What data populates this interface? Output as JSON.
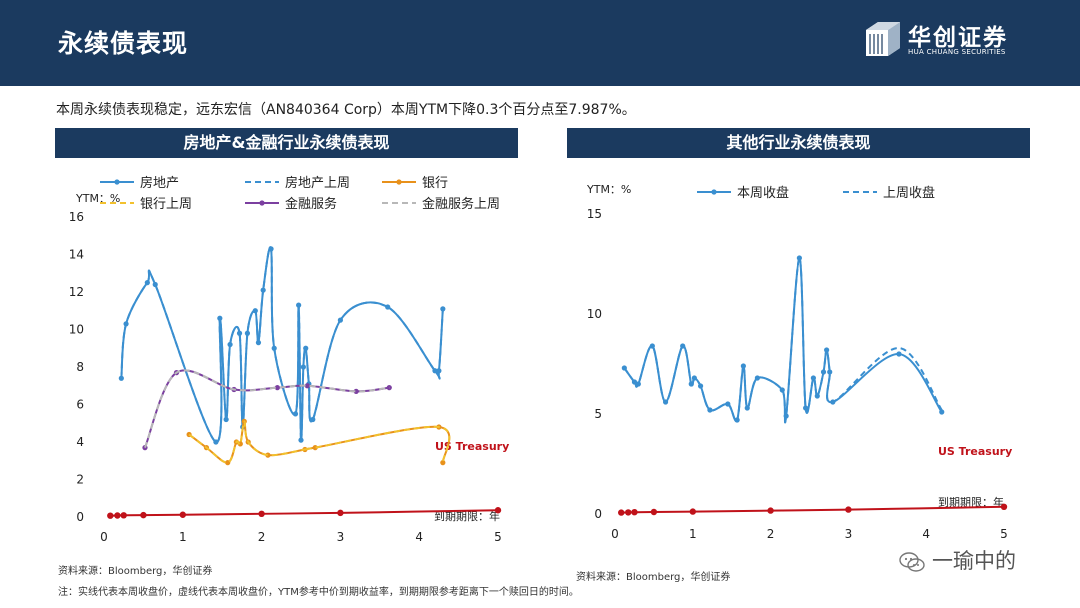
{
  "header": {
    "title": "永续债表现"
  },
  "logo": {
    "cn": "华创证券",
    "en": "HUA CHUANG SECURITIES"
  },
  "summary": "本周永续债表现稳定，远东宏信（AN840364 Corp）本周YTM下降0.3个百分点至7.987%。",
  "footer": {
    "source_left": "资料来源：Bloomberg，华创证券",
    "source_right": "资料来源：Bloomberg，华创证券",
    "note": "注：实线代表本周收盘价，虚线代表本周收盘价，YTM参考中价到期收益率，到期期限参考距离下一个赎回日的时间。"
  },
  "watermark": "一瑜中的",
  "colors": {
    "navy": "#1b3a5f",
    "blue": "#3a8fd0",
    "orange": "#e8911b",
    "purple": "#7b3fa0",
    "red": "#c0121a",
    "gray": "#9a9a9a"
  },
  "chart_data": [
    {
      "type": "line",
      "title": "房地产&金融行业永续债表现",
      "ylabel": "YTM：%",
      "xlabel": "到期期限：年",
      "xlim": [
        0,
        5
      ],
      "ylim": [
        0,
        16
      ],
      "xticks": [
        0,
        1,
        2,
        3,
        4,
        5
      ],
      "yticks": [
        0,
        2,
        4,
        6,
        8,
        10,
        12,
        14,
        16
      ],
      "annotation": "US Treasury",
      "legend_position": "top",
      "series": [
        {
          "name": "房地产",
          "style": "solid",
          "color": "#3a8fd0",
          "x": [
            0.22,
            0.28,
            0.55,
            0.65,
            1.42,
            1.47,
            1.55,
            1.6,
            1.72,
            1.76,
            1.82,
            1.92,
            1.96,
            2.02,
            2.12,
            2.16,
            2.43,
            2.47,
            2.5,
            2.53,
            2.56,
            2.6,
            2.65,
            3.0,
            3.6,
            4.2,
            4.25,
            4.3
          ],
          "y": [
            7.4,
            10.3,
            12.5,
            12.4,
            4.0,
            10.6,
            5.2,
            9.2,
            9.8,
            4.8,
            9.8,
            11.0,
            9.3,
            12.1,
            14.3,
            9.0,
            5.5,
            11.3,
            4.1,
            8.0,
            9.0,
            7.1,
            5.2,
            10.5,
            11.2,
            7.8,
            7.8,
            11.1
          ]
        },
        {
          "name": "房地产上周",
          "style": "dashed",
          "color": "#3a8fd0",
          "x": [
            0.22,
            0.28,
            0.55,
            0.65,
            1.42,
            1.47,
            1.55,
            1.6,
            1.72,
            1.76,
            1.82,
            1.92,
            1.96,
            2.02,
            2.12,
            2.16,
            2.43,
            2.47,
            2.5,
            2.53,
            2.56,
            2.6,
            2.65,
            3.0,
            3.6,
            4.2,
            4.25,
            4.3
          ],
          "y": [
            7.4,
            10.3,
            12.5,
            12.4,
            4.0,
            10.6,
            5.2,
            9.2,
            9.8,
            4.8,
            9.8,
            11.0,
            9.3,
            12.1,
            14.3,
            9.0,
            5.5,
            11.3,
            4.1,
            8.0,
            9.0,
            7.1,
            5.2,
            10.5,
            11.2,
            7.8,
            7.8,
            11.1
          ]
        },
        {
          "name": "银行",
          "style": "solid",
          "color": "#e8911b",
          "x": [
            1.08,
            1.3,
            1.57,
            1.68,
            1.73,
            1.78,
            1.83,
            2.08,
            2.55,
            2.68,
            4.25,
            4.3
          ],
          "y": [
            4.4,
            3.7,
            2.9,
            4.0,
            3.9,
            5.1,
            4.0,
            3.3,
            3.6,
            3.7,
            4.8,
            2.9
          ]
        },
        {
          "name": "银行上周",
          "style": "dashed",
          "color": "#f2c12e",
          "x": [
            1.08,
            1.3,
            1.57,
            1.68,
            1.73,
            1.78,
            1.83,
            2.08,
            2.55,
            2.68,
            4.25,
            4.3
          ],
          "y": [
            4.4,
            3.7,
            2.9,
            4.0,
            3.9,
            5.1,
            4.0,
            3.3,
            3.6,
            3.7,
            4.8,
            2.9
          ]
        },
        {
          "name": "金融服务",
          "style": "solid",
          "color": "#7b3fa0",
          "x": [
            0.52,
            0.92,
            1.65,
            2.2,
            2.58,
            3.2,
            3.62
          ],
          "y": [
            3.7,
            7.7,
            6.8,
            6.9,
            7.0,
            6.7,
            6.9
          ]
        },
        {
          "name": "金融服务上周",
          "style": "dashed",
          "color": "#b8b8b8",
          "x": [
            0.52,
            0.92,
            1.65,
            2.2,
            2.58,
            3.2,
            3.62
          ],
          "y": [
            3.7,
            7.7,
            6.8,
            6.9,
            7.0,
            6.7,
            6.9
          ]
        },
        {
          "name": "US Treasury",
          "style": "solid",
          "color": "#c0121a",
          "legend": false,
          "x": [
            0.08,
            0.17,
            0.25,
            0.5,
            1.0,
            2.0,
            3.0,
            5.0
          ],
          "y": [
            0.07,
            0.08,
            0.09,
            0.1,
            0.12,
            0.17,
            0.22,
            0.36
          ]
        }
      ]
    },
    {
      "type": "line",
      "title": "其他行业永续债表现",
      "ylabel": "YTM：%",
      "xlabel": "到期期限：年",
      "xlim": [
        0,
        5
      ],
      "ylim": [
        0,
        15
      ],
      "xticks": [
        0,
        1,
        2,
        3,
        4,
        5
      ],
      "yticks": [
        0,
        5,
        10,
        15
      ],
      "annotation": "US Treasury",
      "legend_position": "top",
      "series": [
        {
          "name": "本周收盘",
          "style": "solid",
          "color": "#3a8fd0",
          "x": [
            0.12,
            0.25,
            0.3,
            0.48,
            0.65,
            0.87,
            0.98,
            1.02,
            1.1,
            1.22,
            1.45,
            1.57,
            1.65,
            1.7,
            1.83,
            2.15,
            2.2,
            2.37,
            2.45,
            2.55,
            2.6,
            2.68,
            2.72,
            2.76,
            2.8,
            3.65,
            4.2
          ],
          "y": [
            7.3,
            6.6,
            6.5,
            8.4,
            5.6,
            8.4,
            6.5,
            6.8,
            6.4,
            5.2,
            5.5,
            4.7,
            7.4,
            5.3,
            6.8,
            6.2,
            4.9,
            12.8,
            5.3,
            6.8,
            5.9,
            7.1,
            8.2,
            7.1,
            5.6,
            8.0,
            5.1
          ]
        },
        {
          "name": "上周收盘",
          "style": "dashed",
          "color": "#3a8fd0",
          "x": [
            0.12,
            0.25,
            0.3,
            0.48,
            0.65,
            0.87,
            0.98,
            1.02,
            1.1,
            1.22,
            1.45,
            1.57,
            1.65,
            1.7,
            1.83,
            2.15,
            2.2,
            2.37,
            2.45,
            2.55,
            2.6,
            2.68,
            2.72,
            2.76,
            2.8,
            3.65,
            4.2
          ],
          "y": [
            7.3,
            6.6,
            6.5,
            8.4,
            5.6,
            8.4,
            6.5,
            6.8,
            6.4,
            5.2,
            5.5,
            4.7,
            7.4,
            5.3,
            6.8,
            6.2,
            4.9,
            12.8,
            5.3,
            6.8,
            5.9,
            7.1,
            8.2,
            7.1,
            5.6,
            8.3,
            5.2
          ]
        },
        {
          "name": "US Treasury",
          "style": "solid",
          "color": "#c0121a",
          "legend": false,
          "x": [
            0.08,
            0.17,
            0.25,
            0.5,
            1.0,
            2.0,
            3.0,
            5.0
          ],
          "y": [
            0.07,
            0.08,
            0.09,
            0.1,
            0.12,
            0.17,
            0.22,
            0.36
          ]
        }
      ]
    }
  ]
}
